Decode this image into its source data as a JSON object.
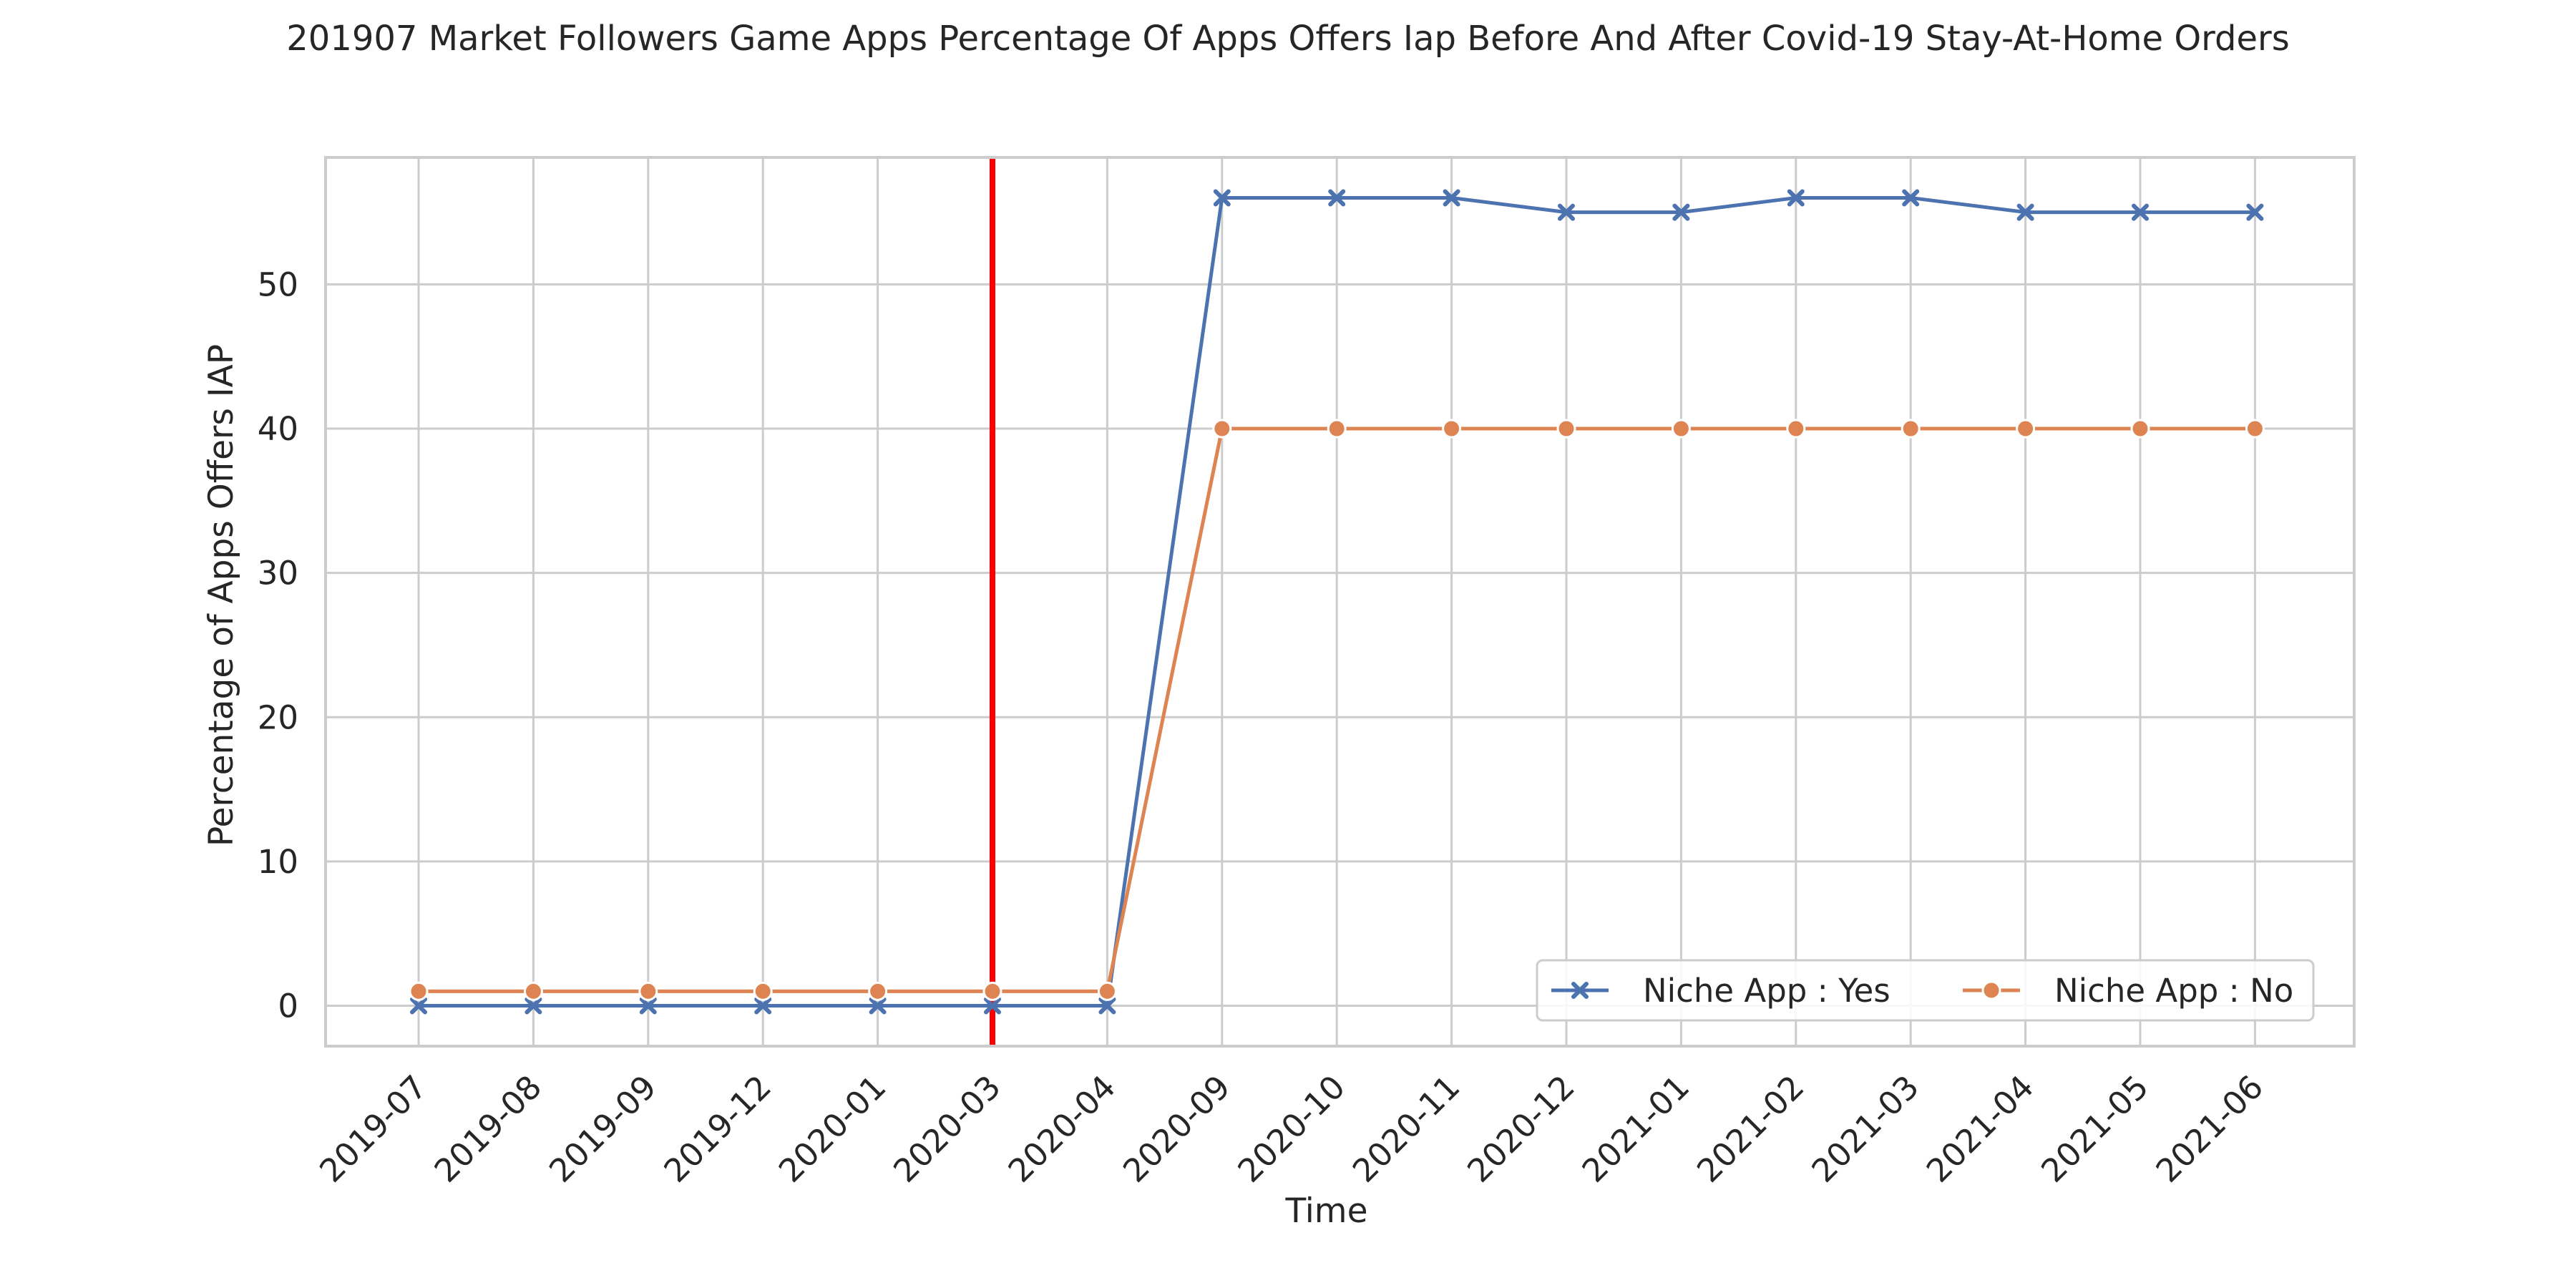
{
  "chart_data": {
    "type": "line",
    "title": "201907 Market Followers Game Apps Percentage Of Apps Offers Iap Before And After Covid-19 Stay-At-Home Orders",
    "xlabel": "Time",
    "ylabel": "Percentage of Apps Offers IAP",
    "categories": [
      "2019-07",
      "2019-08",
      "2019-09",
      "2019-12",
      "2020-01",
      "2020-03",
      "2020-04",
      "2020-09",
      "2020-10",
      "2020-11",
      "2020-12",
      "2021-01",
      "2021-02",
      "2021-03",
      "2021-04",
      "2021-05",
      "2021-06"
    ],
    "series": [
      {
        "name": "Niche App : Yes",
        "color": "#4c72b0",
        "marker": "x",
        "values": [
          0,
          0,
          0,
          0,
          0,
          0,
          0,
          56,
          56,
          56,
          55,
          55,
          56,
          56,
          55,
          55,
          55
        ]
      },
      {
        "name": "Niche App : No",
        "color": "#dd8452",
        "marker": "o",
        "values": [
          1,
          1,
          1,
          1,
          1,
          1,
          1,
          40,
          40,
          40,
          40,
          40,
          40,
          40,
          40,
          40,
          40
        ]
      }
    ],
    "ylim": [
      -2.8,
      58.8
    ],
    "yticks": [
      0,
      10,
      20,
      30,
      40,
      50
    ],
    "grid": true,
    "legend": {
      "placement": "lower-right",
      "columns": 2
    },
    "annotations": [
      {
        "type": "vertical-line",
        "category": "2020-03",
        "color": "#ff0000"
      }
    ]
  }
}
